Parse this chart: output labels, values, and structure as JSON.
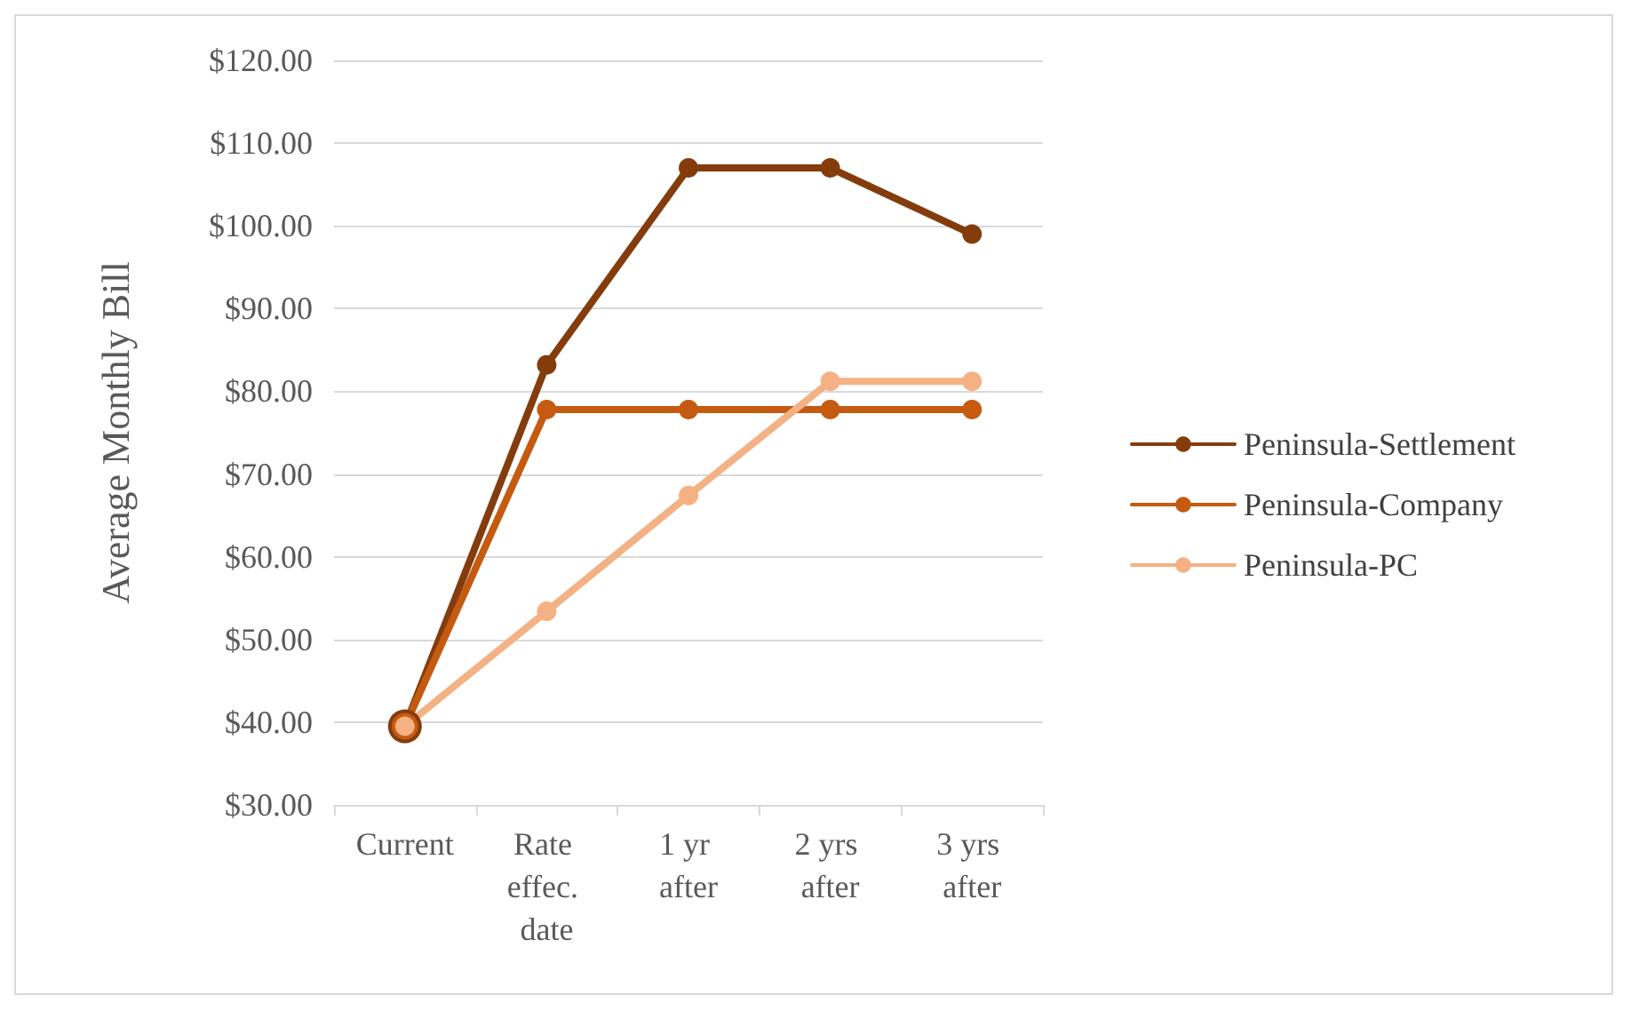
{
  "chart_data": {
    "type": "line",
    "ylabel": "Average Monthly Bill",
    "categories": [
      "Current",
      "Rate effec. date",
      "1 yr after",
      "2 yrs after",
      "3 yrs after"
    ],
    "series": [
      {
        "name": "Peninsula-Settlement",
        "color": "#843c0c",
        "values": [
          39.5,
          83.2,
          107,
          107,
          99
        ]
      },
      {
        "name": "Peninsula-Company",
        "color": "#c55a11",
        "values": [
          39.5,
          77.8,
          77.8,
          77.8,
          77.8
        ]
      },
      {
        "name": "Peninsula-PC",
        "color": "#f4b183",
        "values": [
          39.5,
          53.4,
          67.4,
          81.2,
          81.2
        ]
      }
    ],
    "ylim": [
      30,
      120
    ],
    "yticks": [
      {
        "value": 30,
        "label": "$30.00"
      },
      {
        "value": 40,
        "label": "$40.00"
      },
      {
        "value": 50,
        "label": "$50.00"
      },
      {
        "value": 60,
        "label": "$60.00"
      },
      {
        "value": 70,
        "label": "$70.00"
      },
      {
        "value": 80,
        "label": "$80.00"
      },
      {
        "value": 90,
        "label": "$90.00"
      },
      {
        "value": 100,
        "label": "$100.00"
      },
      {
        "value": 110,
        "label": "$110.00"
      },
      {
        "value": 120,
        "label": "$120.00"
      }
    ],
    "grid": "y",
    "legend": "right",
    "marker": "circle",
    "line_style": "solid"
  }
}
